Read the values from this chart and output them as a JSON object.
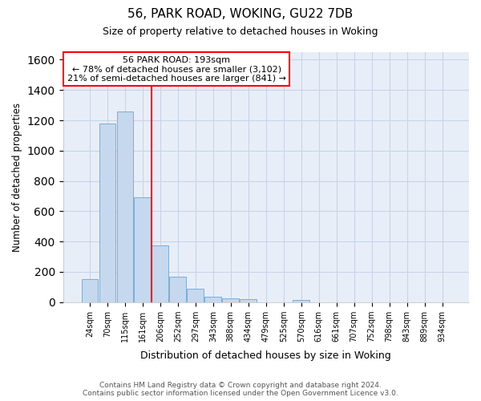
{
  "title1": "56, PARK ROAD, WOKING, GU22 7DB",
  "title2": "Size of property relative to detached houses in Woking",
  "xlabel": "Distribution of detached houses by size in Woking",
  "ylabel": "Number of detached properties",
  "categories": [
    "24sqm",
    "70sqm",
    "115sqm",
    "161sqm",
    "206sqm",
    "252sqm",
    "297sqm",
    "343sqm",
    "388sqm",
    "434sqm",
    "479sqm",
    "525sqm",
    "570sqm",
    "616sqm",
    "661sqm",
    "707sqm",
    "752sqm",
    "798sqm",
    "843sqm",
    "889sqm",
    "934sqm"
  ],
  "values": [
    150,
    1180,
    1260,
    690,
    375,
    165,
    90,
    35,
    25,
    20,
    0,
    0,
    15,
    0,
    0,
    0,
    0,
    0,
    0,
    0,
    0
  ],
  "bar_color": "#c5d8ee",
  "bar_edge_color": "#7aaed6",
  "grid_color": "#c8d4e8",
  "background_color": "#e8eef8",
  "ylim": [
    0,
    1650
  ],
  "yticks": [
    0,
    200,
    400,
    600,
    800,
    1000,
    1200,
    1400,
    1600
  ],
  "property_label": "56 PARK ROAD: 193sqm",
  "annotation_line1": "← 78% of detached houses are smaller (3,102)",
  "annotation_line2": "21% of semi-detached houses are larger (841) →",
  "red_line_x": 3.5,
  "box_facecolor": "white",
  "box_edgecolor": "red",
  "footer1": "Contains HM Land Registry data © Crown copyright and database right 2024.",
  "footer2": "Contains public sector information licensed under the Open Government Licence v3.0."
}
